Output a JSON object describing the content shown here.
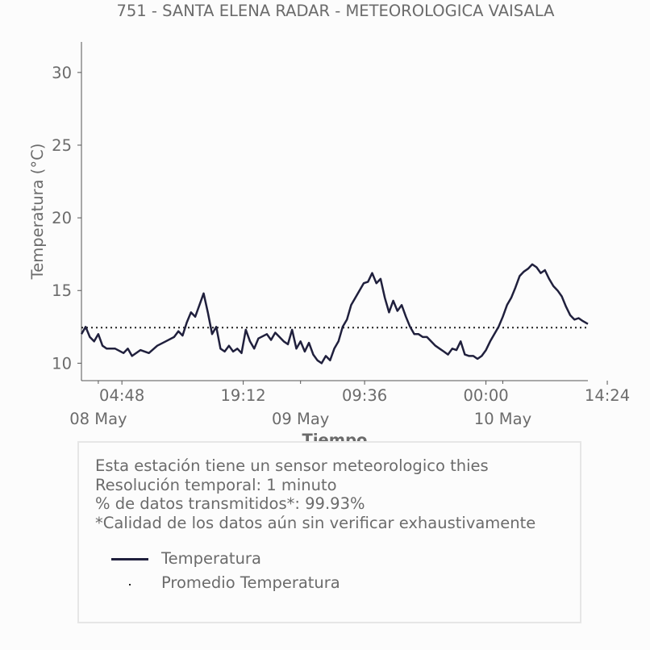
{
  "chart_data": {
    "type": "line",
    "title": "751 - SANTA ELENA RADAR - METEOROLOGICA VAISALA",
    "xlabel": "Tiempo",
    "ylabel": "Temperatura (°C)",
    "ylim": [
      8.8,
      32.1
    ],
    "yticks": [
      10,
      15,
      20,
      25,
      30
    ],
    "xlim_hours": [
      0,
      60.1
    ],
    "x_time_ticks": [
      {
        "label": "04:48",
        "hours": 4.8
      },
      {
        "label": "19:12",
        "hours": 19.2
      },
      {
        "label": "09:36",
        "hours": 33.6
      },
      {
        "label": "00:00",
        "hours": 48.0
      },
      {
        "label": "14:24",
        "hours": 62.4
      }
    ],
    "x_date_ticks": [
      {
        "label": "08 May",
        "hours": 2.0
      },
      {
        "label": "09 May",
        "hours": 26.0
      },
      {
        "label": "10 May",
        "hours": 50.0
      }
    ],
    "grid": false,
    "series": [
      {
        "name": "Temperatura",
        "color": "#20203d",
        "style": "solid",
        "points": [
          [
            0,
            12.0
          ],
          [
            0.5,
            12.5
          ],
          [
            1.0,
            11.8
          ],
          [
            1.5,
            11.5
          ],
          [
            2.0,
            12.0
          ],
          [
            2.5,
            11.2
          ],
          [
            3.0,
            11.0
          ],
          [
            4.0,
            11.0
          ],
          [
            5.0,
            10.7
          ],
          [
            5.5,
            11.0
          ],
          [
            6.0,
            10.5
          ],
          [
            7.0,
            10.9
          ],
          [
            8.0,
            10.7
          ],
          [
            9.0,
            11.2
          ],
          [
            10.0,
            11.5
          ],
          [
            11.0,
            11.8
          ],
          [
            11.5,
            12.2
          ],
          [
            12.0,
            11.9
          ],
          [
            12.5,
            12.8
          ],
          [
            13.0,
            13.5
          ],
          [
            13.5,
            13.2
          ],
          [
            14.0,
            14.0
          ],
          [
            14.5,
            14.8
          ],
          [
            15.0,
            13.5
          ],
          [
            15.5,
            12.0
          ],
          [
            16.0,
            12.5
          ],
          [
            16.5,
            11.0
          ],
          [
            17.0,
            10.8
          ],
          [
            17.5,
            11.2
          ],
          [
            18.0,
            10.8
          ],
          [
            18.5,
            11.0
          ],
          [
            19.0,
            10.7
          ],
          [
            19.5,
            12.3
          ],
          [
            20.0,
            11.5
          ],
          [
            20.5,
            11.0
          ],
          [
            21.0,
            11.7
          ],
          [
            22.0,
            12.0
          ],
          [
            22.5,
            11.6
          ],
          [
            23.0,
            12.1
          ],
          [
            23.5,
            11.8
          ],
          [
            24.0,
            11.5
          ],
          [
            24.5,
            11.3
          ],
          [
            25.0,
            12.3
          ],
          [
            25.5,
            11.0
          ],
          [
            26.0,
            11.5
          ],
          [
            26.5,
            10.8
          ],
          [
            27.0,
            11.4
          ],
          [
            27.5,
            10.6
          ],
          [
            28.0,
            10.2
          ],
          [
            28.5,
            10.0
          ],
          [
            29.0,
            10.5
          ],
          [
            29.5,
            10.2
          ],
          [
            30.0,
            11.0
          ],
          [
            30.5,
            11.5
          ],
          [
            31.0,
            12.5
          ],
          [
            31.5,
            13.0
          ],
          [
            32.0,
            14.0
          ],
          [
            32.5,
            14.5
          ],
          [
            33.0,
            15.0
          ],
          [
            33.5,
            15.5
          ],
          [
            34.0,
            15.6
          ],
          [
            34.5,
            16.2
          ],
          [
            35.0,
            15.5
          ],
          [
            35.5,
            15.8
          ],
          [
            36.0,
            14.5
          ],
          [
            36.5,
            13.5
          ],
          [
            37.0,
            14.3
          ],
          [
            37.5,
            13.6
          ],
          [
            38.0,
            14.0
          ],
          [
            38.5,
            13.2
          ],
          [
            39.0,
            12.5
          ],
          [
            39.5,
            12.0
          ],
          [
            40.0,
            12.0
          ],
          [
            40.5,
            11.8
          ],
          [
            41.0,
            11.8
          ],
          [
            41.5,
            11.5
          ],
          [
            42.0,
            11.2
          ],
          [
            42.5,
            11.0
          ],
          [
            43.0,
            10.8
          ],
          [
            43.5,
            10.6
          ],
          [
            44.0,
            11.0
          ],
          [
            44.5,
            10.9
          ],
          [
            45.0,
            11.5
          ],
          [
            45.5,
            10.6
          ],
          [
            46.0,
            10.5
          ],
          [
            46.5,
            10.5
          ],
          [
            47.0,
            10.3
          ],
          [
            47.5,
            10.5
          ],
          [
            48.0,
            10.9
          ],
          [
            48.5,
            11.5
          ],
          [
            49.0,
            12.0
          ],
          [
            49.5,
            12.5
          ],
          [
            50.0,
            13.2
          ],
          [
            50.5,
            14.0
          ],
          [
            51.0,
            14.5
          ],
          [
            51.5,
            15.2
          ],
          [
            52.0,
            16.0
          ],
          [
            52.5,
            16.3
          ],
          [
            53.0,
            16.5
          ],
          [
            53.5,
            16.8
          ],
          [
            54.0,
            16.6
          ],
          [
            54.5,
            16.2
          ],
          [
            55.0,
            16.4
          ],
          [
            55.5,
            15.8
          ],
          [
            56.0,
            15.3
          ],
          [
            56.5,
            15.0
          ],
          [
            57.0,
            14.6
          ],
          [
            57.5,
            13.9
          ],
          [
            58.0,
            13.3
          ],
          [
            58.5,
            13.0
          ],
          [
            59.0,
            13.1
          ],
          [
            59.5,
            12.9
          ],
          [
            60.1,
            12.7
          ]
        ]
      },
      {
        "name": "Promedio Temperatura",
        "color": "#222222",
        "style": "dotted",
        "value": 12.45
      }
    ]
  },
  "info": {
    "line1": "Esta estación tiene un sensor meteorologico thies",
    "line2": "Resolución temporal: 1 minuto",
    "line3": "% de datos transmitidos*: 99.93%",
    "line4": "*Calidad de los datos aún sin verificar exhaustivamente"
  },
  "legend": {
    "item1": "Temperatura",
    "item2": "Promedio Temperatura"
  }
}
